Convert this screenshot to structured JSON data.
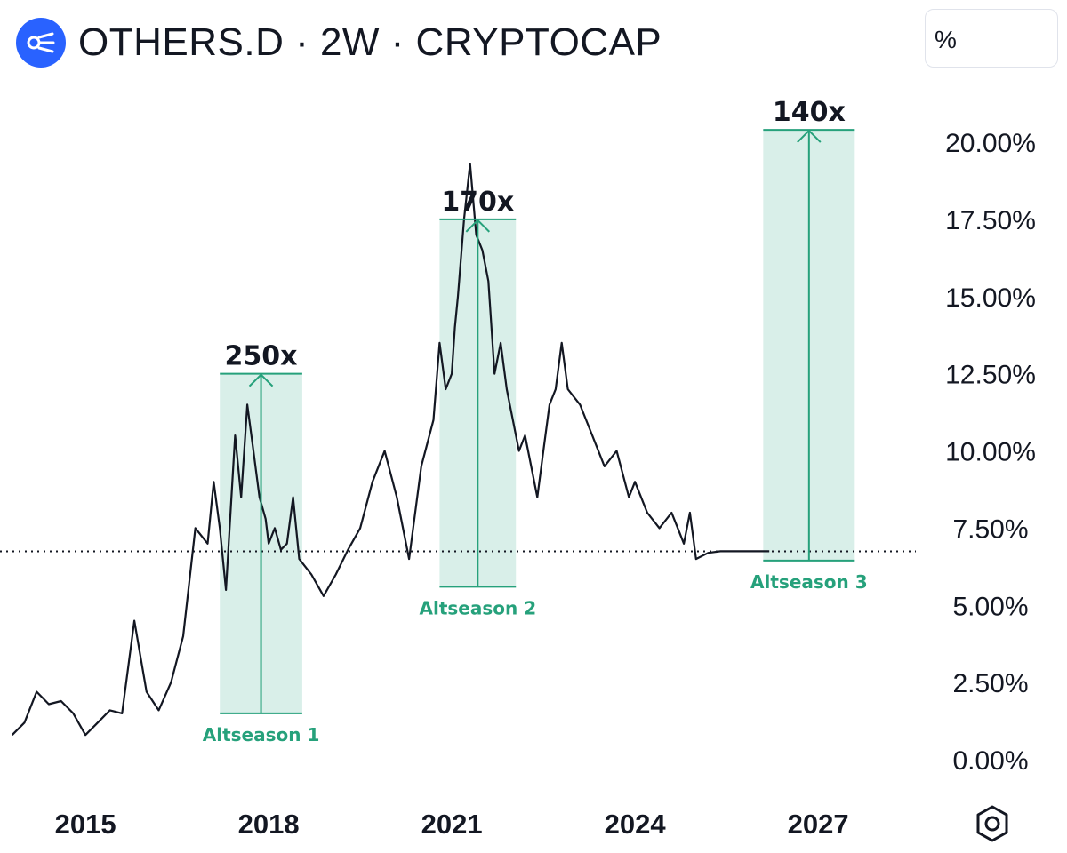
{
  "header": {
    "title": "OTHERS.D · 2W · CRYPTOCAP",
    "logo_icon": "cryptocap-logo-icon",
    "scale_button": "%"
  },
  "colors": {
    "accent": "#26a17b",
    "band": "#d9efe9",
    "price": "#131722",
    "logo": "#2962ff"
  },
  "chart_data": {
    "type": "line",
    "title": "OTHERS.D · 2W · CRYPTOCAP",
    "xlabel": "",
    "ylabel": "",
    "ylim": [
      0,
      20
    ],
    "xlim": [
      2013.6,
      2028.6
    ],
    "y_ticks": [
      "0.00%",
      "2.50%",
      "5.00%",
      "7.50%",
      "10.00%",
      "12.50%",
      "15.00%",
      "17.50%",
      "20.00%"
    ],
    "x_ticks": [
      "2015",
      "2018",
      "2021",
      "2024",
      "2027"
    ],
    "current_level": 6.75,
    "series": [
      {
        "name": "OTHERS.D",
        "x": [
          2013.8,
          2014.0,
          2014.2,
          2014.4,
          2014.6,
          2014.8,
          2015.0,
          2015.2,
          2015.4,
          2015.6,
          2015.8,
          2016.0,
          2016.2,
          2016.4,
          2016.6,
          2016.8,
          2017.0,
          2017.1,
          2017.2,
          2017.3,
          2017.45,
          2017.55,
          2017.65,
          2017.75,
          2017.85,
          2017.95,
          2018.0,
          2018.1,
          2018.2,
          2018.3,
          2018.4,
          2018.5,
          2018.7,
          2018.9,
          2019.1,
          2019.3,
          2019.5,
          2019.7,
          2019.9,
          2020.1,
          2020.3,
          2020.5,
          2020.7,
          2020.8,
          2020.9,
          2021.0,
          2021.05,
          2021.1,
          2021.2,
          2021.3,
          2021.4,
          2021.5,
          2021.6,
          2021.7,
          2021.8,
          2021.9,
          2022.0,
          2022.1,
          2022.2,
          2022.3,
          2022.4,
          2022.5,
          2022.6,
          2022.7,
          2022.8,
          2022.9,
          2023.1,
          2023.3,
          2023.5,
          2023.7,
          2023.9,
          2024.0,
          2024.2,
          2024.4,
          2024.6,
          2024.8,
          2024.9,
          2025.0,
          2025.2,
          2025.4,
          2025.6,
          2025.8,
          2025.9,
          2026.0,
          2026.1,
          2026.2
        ],
        "values": [
          0.8,
          1.2,
          2.2,
          1.8,
          1.9,
          1.5,
          0.8,
          1.2,
          1.6,
          1.5,
          4.5,
          2.2,
          1.6,
          2.5,
          4.0,
          7.5,
          7.0,
          9.0,
          7.5,
          5.5,
          10.5,
          8.5,
          11.5,
          10.0,
          8.5,
          7.8,
          7.0,
          7.5,
          6.8,
          7.0,
          8.5,
          6.5,
          6.0,
          5.3,
          6.0,
          6.8,
          7.5,
          9.0,
          10.0,
          8.5,
          6.5,
          9.5,
          11.0,
          13.5,
          12.0,
          12.5,
          14.0,
          15.0,
          17.5,
          19.3,
          17.0,
          16.5,
          15.5,
          12.5,
          13.5,
          12.0,
          11.0,
          10.0,
          10.5,
          9.5,
          8.5,
          10.0,
          11.5,
          12.0,
          13.5,
          12.0,
          11.5,
          10.5,
          9.5,
          10.0,
          8.5,
          9.0,
          8.0,
          7.5,
          8.0,
          7.0,
          8.0,
          6.5,
          6.7,
          6.75,
          6.75,
          6.75,
          6.75,
          6.75,
          6.75,
          6.75
        ]
      }
    ],
    "annotations": [
      {
        "label": "Altseason 1",
        "multiplier": "250x",
        "x_start": 2017.2,
        "x_end": 2018.55,
        "y_low": 1.5,
        "y_high": 12.5
      },
      {
        "label": "Altseason 2",
        "multiplier": "170x",
        "x_start": 2020.8,
        "x_end": 2022.05,
        "y_low": 5.6,
        "y_high": 17.5
      },
      {
        "label": "Altseason 3",
        "multiplier": "140x",
        "x_start": 2026.1,
        "x_end": 2027.6,
        "y_low": 6.45,
        "y_high": 20.4
      }
    ]
  }
}
